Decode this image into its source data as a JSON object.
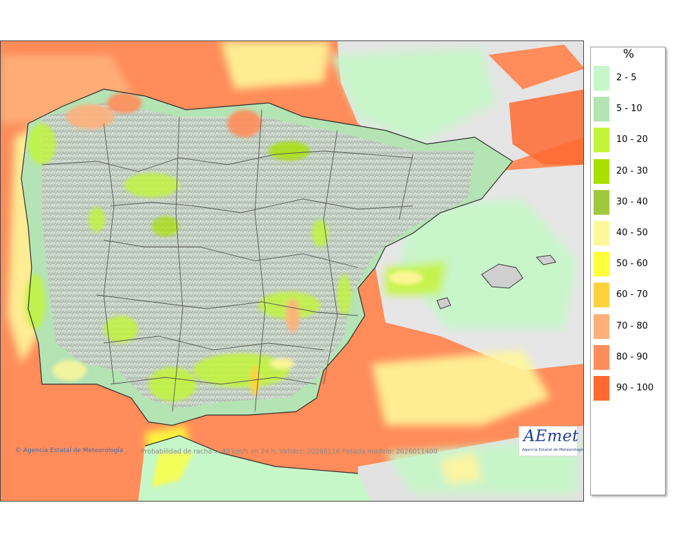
{
  "map": {
    "unit": "%",
    "caption": "Probabilidad de racha > 40 km/h en 24 h. Validez: 20260116 Pasada modelo: 2026011400",
    "copyright": "© Agencia Estatal de Meteorología",
    "logo": {
      "word": "AEmet",
      "subtitle": "Agencia Estatal de Meteorología"
    },
    "legend": [
      {
        "label": "2 - 5",
        "color": "#c6f7c8"
      },
      {
        "label": "5 - 10",
        "color": "#b4e3b4"
      },
      {
        "label": "10 - 20",
        "color": "#c2f53a"
      },
      {
        "label": "20 - 30",
        "color": "#a8e000"
      },
      {
        "label": "30 - 40",
        "color": "#9fc83c"
      },
      {
        "label": "40 - 50",
        "color": "#fff79a"
      },
      {
        "label": "50 - 60",
        "color": "#ffff3c"
      },
      {
        "label": "60 - 70",
        "color": "#ffd23c"
      },
      {
        "label": "70 - 80",
        "color": "#ffb07a"
      },
      {
        "label": "80 - 90",
        "color": "#ff8c5a"
      },
      {
        "label": "90 - 100",
        "color": "#ff6a32"
      }
    ]
  }
}
